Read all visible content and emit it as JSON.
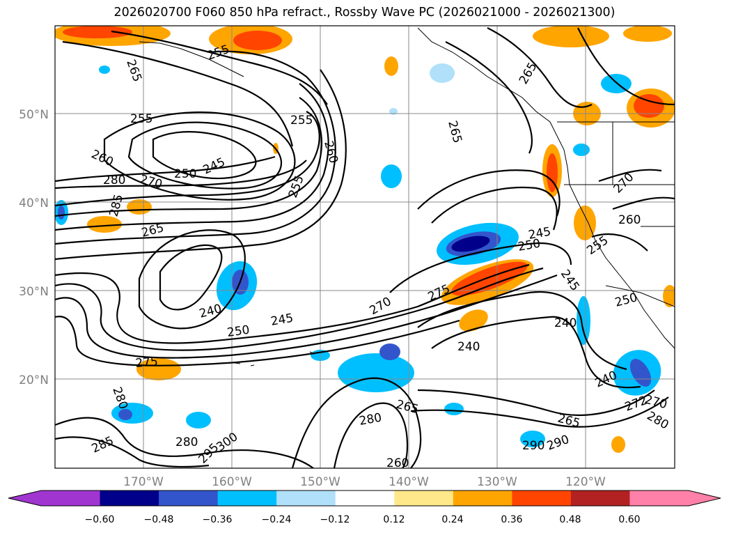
{
  "title": "2026020700 F060 850 hPa refract., Rossby Wave PC (2026021000 - 2026021300)",
  "map": {
    "lat_labels": [
      "50°N",
      "40°N",
      "30°N",
      "20°N"
    ],
    "lon_labels": [
      "170°W",
      "160°W",
      "150°W",
      "140°W",
      "130°W",
      "120°W"
    ],
    "contour_labels": [
      "265",
      "255",
      "255",
      "255",
      "260",
      "265",
      "265",
      "260",
      "250",
      "245",
      "270",
      "280",
      "285",
      "265",
      "255",
      "240",
      "250",
      "245",
      "270",
      "275",
      "245",
      "250",
      "245",
      "240",
      "250",
      "260",
      "255",
      "270",
      "240",
      "275",
      "280",
      "265",
      "280",
      "285",
      "290",
      "270",
      "272",
      "280",
      "240",
      "290",
      "295",
      "300",
      "260",
      "280",
      "265"
    ]
  },
  "colorbar": {
    "tick_labels": [
      "−0.60",
      "−0.48",
      "−0.36",
      "−0.24",
      "−0.12",
      "0.12",
      "0.24",
      "0.36",
      "0.48",
      "0.60"
    ],
    "colors": [
      "#a035d0",
      "#00008b",
      "#3355cc",
      "#00bfff",
      "#b0e0fa",
      "#ffffff",
      "#ffe88a",
      "#ffa500",
      "#ff4500",
      "#b22222",
      "#ff80a8"
    ]
  }
}
